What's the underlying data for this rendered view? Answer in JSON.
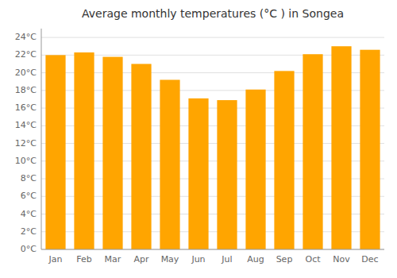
{
  "chart_data": {
    "type": "bar",
    "title": "Average monthly temperatures (°C ) in Songea",
    "categories": [
      "Jan",
      "Feb",
      "Mar",
      "Apr",
      "May",
      "Jun",
      "Jul",
      "Aug",
      "Sep",
      "Oct",
      "Nov",
      "Dec"
    ],
    "values": [
      22.0,
      22.3,
      21.8,
      21.0,
      19.2,
      17.1,
      16.9,
      18.1,
      20.2,
      22.1,
      23.0,
      22.6
    ],
    "color": "#FFA500",
    "ylim": [
      0,
      25
    ],
    "yticks": [
      {
        "value": 0,
        "label": "0°C"
      },
      {
        "value": 2,
        "label": "2°C"
      },
      {
        "value": 4,
        "label": "4°C"
      },
      {
        "value": 6,
        "label": "6°C"
      },
      {
        "value": 8,
        "label": "8°C"
      },
      {
        "value": 10,
        "label": "10°C"
      },
      {
        "value": 12,
        "label": "12°C"
      },
      {
        "value": 14,
        "label": "14°C"
      },
      {
        "value": 16,
        "label": "16°C"
      },
      {
        "value": 18,
        "label": "18°C"
      },
      {
        "value": 20,
        "label": "20°C"
      },
      {
        "value": 22,
        "label": "22°C"
      },
      {
        "value": 24,
        "label": "24°C"
      }
    ],
    "grid": true
  }
}
